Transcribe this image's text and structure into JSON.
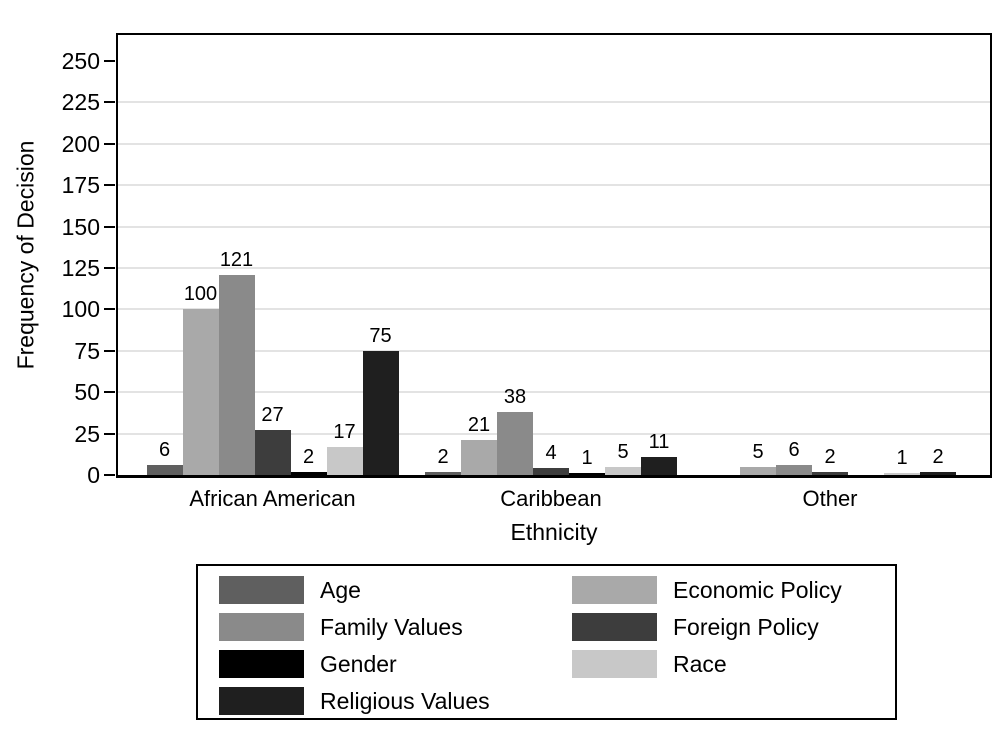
{
  "chart_data": {
    "type": "bar",
    "title": "",
    "xlabel": "Ethnicity",
    "ylabel": "Frequency of Decision",
    "categories": [
      "African American",
      "Caribbean",
      "Other"
    ],
    "series": [
      {
        "name": "Age",
        "color": "#5f5f5f",
        "values": [
          6,
          2,
          0
        ]
      },
      {
        "name": "Economic Policy",
        "color": "#a9a9a9",
        "values": [
          100,
          21,
          5
        ]
      },
      {
        "name": "Family Values",
        "color": "#8a8a8a",
        "values": [
          121,
          38,
          6
        ]
      },
      {
        "name": "Foreign Policy",
        "color": "#3d3d3d",
        "values": [
          27,
          4,
          2
        ]
      },
      {
        "name": "Gender",
        "color": "#000000",
        "values": [
          2,
          1,
          0
        ]
      },
      {
        "name": "Race",
        "color": "#c8c8c8",
        "values": [
          17,
          5,
          1
        ]
      },
      {
        "name": "Religious Values",
        "color": "#1f1f1f",
        "values": [
          75,
          11,
          2
        ]
      }
    ],
    "ylim": [
      0,
      250
    ],
    "yticks": [
      0,
      25,
      50,
      75,
      100,
      125,
      150,
      175,
      200,
      225,
      250
    ],
    "grid": true,
    "gridline_color": "#e3e3e3",
    "axis_color": "#000000",
    "show_bar_value_labels": true,
    "legend_position": "bottom-center",
    "legend_columns": 2
  }
}
